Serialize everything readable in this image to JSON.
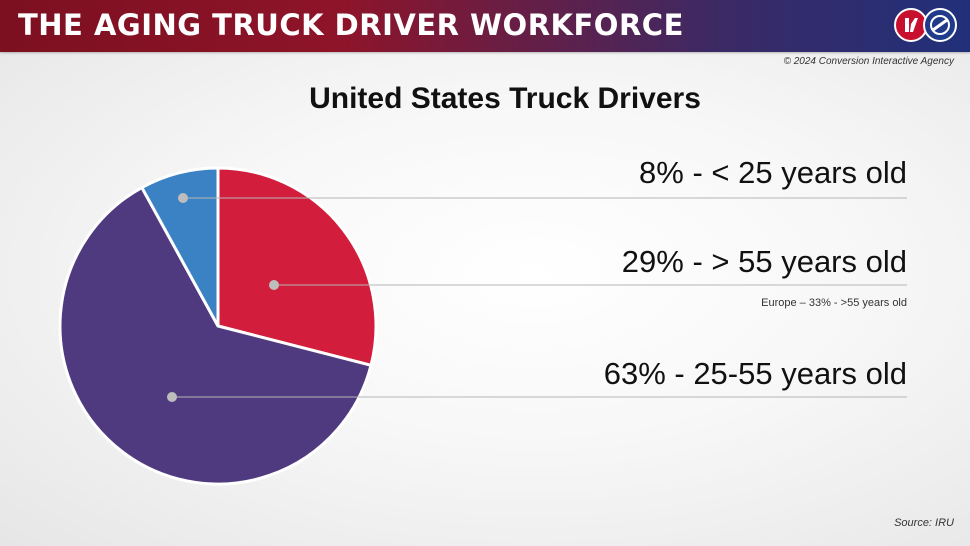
{
  "header": {
    "title": "THE AGING TRUCK DRIVER WORKFORCE",
    "copyright": "© 2024 Conversion Interactive Agency",
    "brand_colors": {
      "red": "#c8102e",
      "navy": "#21307a"
    },
    "logos": [
      "brand-logo-icon",
      "road-logo-icon"
    ]
  },
  "chart_data": {
    "type": "pie",
    "title": "United States Truck Drivers",
    "slices": [
      {
        "label": "> 55 years old",
        "value": 29,
        "color": "#d21e3c",
        "text": "29% - > 55 years old"
      },
      {
        "label": "25-55 years old",
        "value": 63,
        "color": "#4f3a80",
        "text": "63% - 25-55 years old"
      },
      {
        "label": "< 25 years old",
        "value": 8,
        "color": "#3a82c4",
        "text": "8% - < 25 years old"
      }
    ],
    "annotation": "Europe – 33% - >55 years old",
    "source": "Source: IRU"
  }
}
